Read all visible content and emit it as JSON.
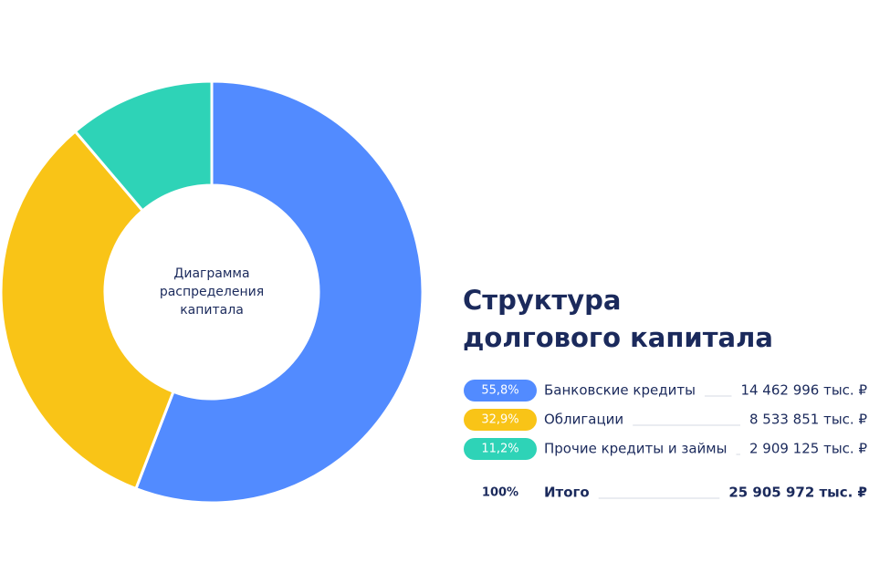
{
  "chart_data": {
    "type": "pie",
    "donut": true,
    "title": [
      "Структура",
      "долгового капитала"
    ],
    "center_label": [
      "Диаграмма",
      "распределения",
      "капитала"
    ],
    "categories": [
      "Банковские кредиты",
      "Облигации",
      "Прочие кредиты и займы"
    ],
    "values": [
      55.8,
      32.9,
      11.2
    ],
    "value_labels": [
      "55,8%",
      "32,9%",
      "11,2%"
    ],
    "colors": [
      "#528bff",
      "#f9c417",
      "#2ed3b7"
    ],
    "amounts": [
      "14 462 996 тыс. ₽",
      "8 533 851 тыс. ₽",
      "2 909 125 тыс. ₽"
    ],
    "total": {
      "share": "100%",
      "label": "Итого",
      "amount": "25 905 972 тыс. ₽"
    }
  }
}
